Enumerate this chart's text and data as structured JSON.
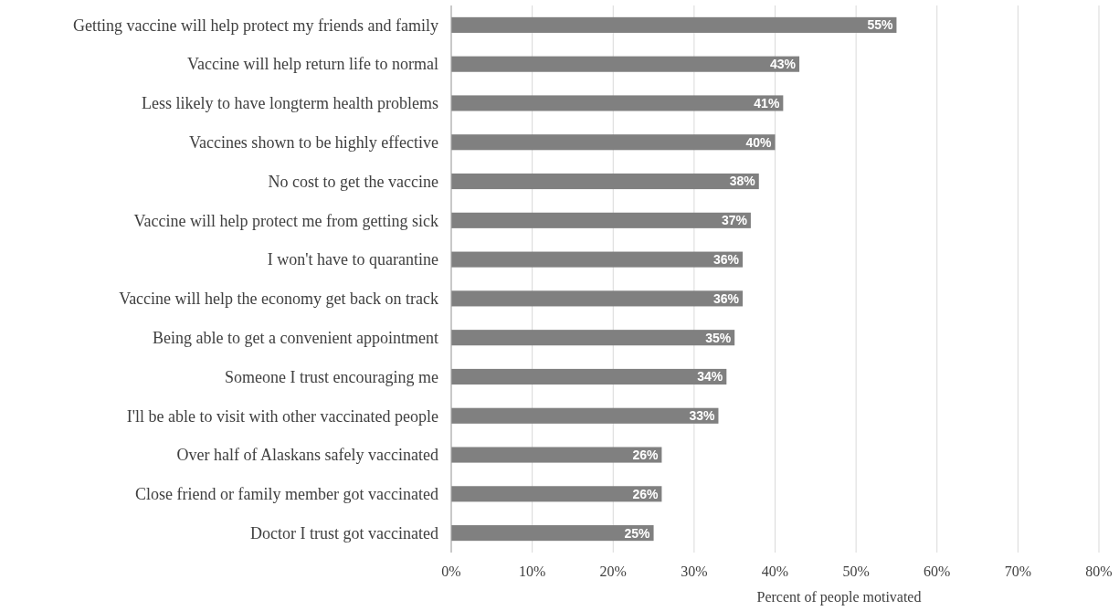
{
  "chart_data": {
    "type": "bar",
    "orientation": "horizontal",
    "xlabel": "Percent of people motivated",
    "categories": [
      "Getting vaccine will help protect my friends and family",
      "Vaccine will help return life to normal",
      "Less likely to have longterm health problems",
      "Vaccines shown to be highly effective",
      "No cost to get the vaccine",
      "Vaccine will help protect me from getting sick",
      "I won't have to quarantine",
      "Vaccine will help the economy get back on track",
      "Being able to get a convenient appointment",
      "Someone I trust encouraging me",
      "I'll be able to visit with other vaccinated people",
      "Over half of Alaskans safely vaccinated",
      "Close friend or family member got vaccinated",
      "Doctor I trust got vaccinated"
    ],
    "values": [
      55,
      43,
      41,
      40,
      38,
      37,
      36,
      36,
      35,
      34,
      33,
      26,
      26,
      25
    ],
    "value_labels": [
      "55%",
      "43%",
      "41%",
      "40%",
      "38%",
      "37%",
      "36%",
      "36%",
      "35%",
      "34%",
      "33%",
      "26%",
      "26%",
      "25%"
    ],
    "color": "#808080",
    "xlim": [
      0,
      80
    ],
    "xticks": [
      {
        "value": 0,
        "label": "0%"
      },
      {
        "value": 10,
        "label": "10%"
      },
      {
        "value": 20,
        "label": "20%"
      },
      {
        "value": 30,
        "label": "30%"
      },
      {
        "value": 40,
        "label": "40%"
      },
      {
        "value": 50,
        "label": "50%"
      },
      {
        "value": 60,
        "label": "60%"
      },
      {
        "value": 70,
        "label": "70%"
      },
      {
        "value": 80,
        "label": "80%"
      }
    ],
    "grid": "x"
  }
}
